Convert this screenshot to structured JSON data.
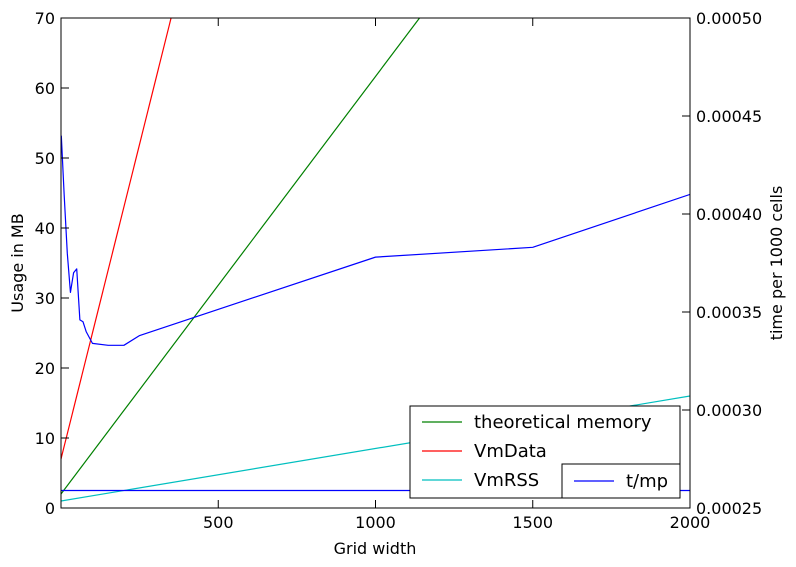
{
  "chart_data": {
    "type": "line",
    "xlabel": "Grid width",
    "ylabel_left": "Usage in MB",
    "ylabel_right": "time per 1000 cells",
    "xlim": [
      0,
      2000
    ],
    "ylim_left": [
      0,
      70
    ],
    "ylim_right": [
      0.00025,
      0.0005
    ],
    "x_ticks": [
      "500",
      "1000",
      "1500",
      "2000"
    ],
    "x_tick_values": [
      500,
      1000,
      1500,
      2000
    ],
    "y_left_ticks": [
      "0",
      "10",
      "20",
      "30",
      "40",
      "50",
      "60",
      "70"
    ],
    "y_left_tick_values": [
      0,
      10,
      20,
      30,
      40,
      50,
      60,
      70
    ],
    "y_right_ticks": [
      "0.00025",
      "0.00030",
      "0.00035",
      "0.00040",
      "0.00045",
      "0.00050"
    ],
    "y_right_tick_values": [
      0.00025,
      0.0003,
      0.00035,
      0.0004,
      0.00045,
      0.0005
    ],
    "grid": false,
    "series": [
      {
        "name": "theoretical memory",
        "axis": "left",
        "color": "#008000",
        "x": [
          0,
          1140
        ],
        "y": [
          2,
          70
        ]
      },
      {
        "name": "VmData",
        "axis": "left",
        "color": "#ff0000",
        "x": [
          0,
          350
        ],
        "y": [
          7,
          70
        ]
      },
      {
        "name": "VmRSS",
        "axis": "left",
        "color": "#00bfbf",
        "x": [
          0,
          2000
        ],
        "y": [
          1,
          16
        ]
      },
      {
        "name": "",
        "axis": "left",
        "color": "#0000ff",
        "x": [
          0,
          2000
        ],
        "y": [
          2.5,
          2.5
        ]
      },
      {
        "name": "t/mp",
        "axis": "right",
        "color": "#0000ff",
        "x": [
          1,
          10,
          20,
          30,
          40,
          50,
          60,
          70,
          80,
          100,
          150,
          200,
          250,
          1000,
          1500,
          2000
        ],
        "y": [
          0.00044,
          0.00041,
          0.00038,
          0.00036,
          0.00037,
          0.000372,
          0.000346,
          0.000345,
          0.00034,
          0.000334,
          0.000333,
          0.000333,
          0.000338,
          0.000378,
          0.000383,
          0.00041
        ]
      }
    ],
    "legend_left": {
      "placement": "lower-right",
      "entries": [
        "theoretical memory",
        "VmData",
        "VmRSS"
      ]
    },
    "legend_right": {
      "placement": "lower-right",
      "entries": [
        "t/mp"
      ]
    }
  }
}
